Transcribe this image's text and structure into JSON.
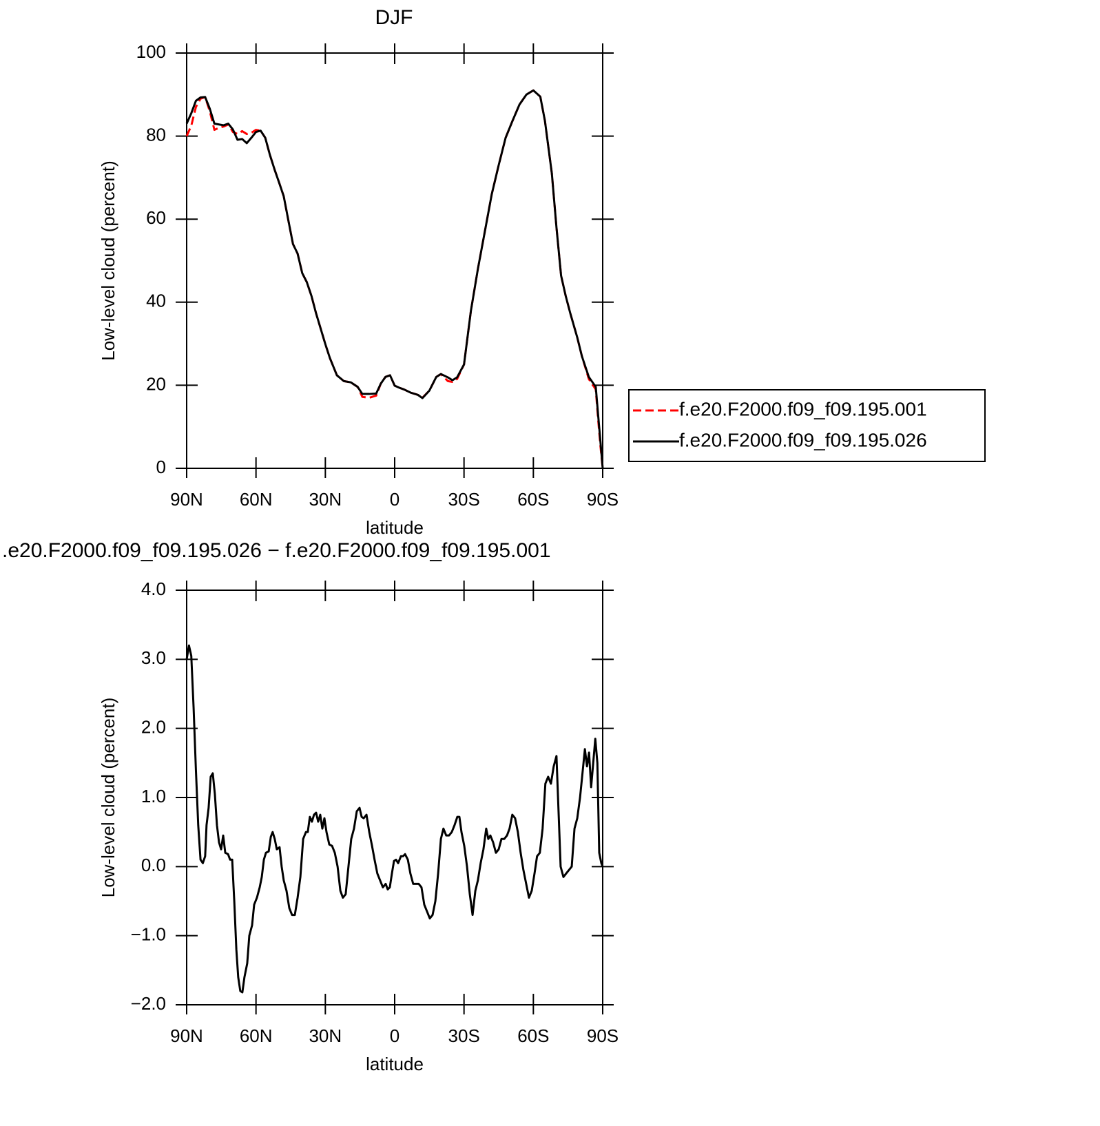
{
  "chart_data": [
    {
      "type": "line",
      "title": "DJF",
      "x_label": "latitude",
      "y_label": "Low-level cloud (percent)",
      "x": [
        90,
        88,
        86,
        84,
        82,
        80,
        78,
        76,
        74,
        72,
        70,
        68,
        66,
        64,
        62,
        60,
        58,
        56,
        54,
        52,
        50,
        48,
        46,
        44,
        42,
        40,
        38,
        36,
        34,
        30,
        28,
        25,
        22,
        19,
        16,
        14,
        11,
        8,
        6,
        4,
        2,
        0,
        -2,
        -4,
        -7,
        -10,
        -12,
        -15,
        -18,
        -20,
        -23,
        -25,
        -27,
        -30,
        -33,
        -36,
        -39,
        -42,
        -45,
        -48,
        -51,
        -54,
        -57,
        -60,
        -63,
        -65,
        -68,
        -70,
        -72,
        -74,
        -76,
        -79,
        -81,
        -84,
        -87,
        -88,
        -89,
        -90
      ],
      "series": [
        {
          "name": "f.e20.F2000.f09_f09.195.001",
          "color": "#ff0000",
          "dashed": true,
          "values": [
            80,
            82.5,
            87,
            89,
            89.4,
            86,
            81.5,
            82,
            82.3,
            82.8,
            81,
            80.5,
            81.2,
            80.5,
            80.8,
            81.5,
            81.3,
            79.6,
            75.5,
            72,
            68.8,
            65.5,
            59.7,
            54,
            51.7,
            47,
            44.8,
            41.5,
            37.3,
            29.9,
            26.5,
            22.4,
            21,
            20.7,
            19.6,
            17.2,
            17,
            17.5,
            20.4,
            22,
            22.4,
            19.9,
            19.4,
            19,
            18.2,
            17.7,
            17,
            18.7,
            22,
            22.7,
            21,
            20.8,
            21.5,
            25,
            38,
            48,
            57,
            66,
            73,
            79.6,
            83.7,
            87.6,
            90,
            91,
            89.5,
            83.7,
            71,
            58,
            46.4,
            41.5,
            37.3,
            31.5,
            27,
            21.5,
            19,
            12,
            5.5,
            0
          ]
        },
        {
          "name": "f.e20.F2000.f09_f09.195.026",
          "color": "#000000",
          "dashed": false,
          "values": [
            83,
            85.5,
            88.5,
            89.3,
            89.4,
            86.6,
            83,
            82.8,
            82.6,
            83,
            81.6,
            79.1,
            79.3,
            78.3,
            79.6,
            81,
            81.3,
            79.6,
            75.5,
            72,
            68.8,
            65.5,
            59.7,
            54,
            51.7,
            47,
            44.8,
            41.5,
            37.3,
            29.9,
            26.5,
            22.4,
            21,
            20.7,
            19.6,
            17.9,
            17.9,
            18,
            20.4,
            22,
            22.4,
            19.9,
            19.4,
            19,
            18.2,
            17.7,
            16.9,
            18.7,
            22,
            22.7,
            21.9,
            21.2,
            21.9,
            25,
            38,
            48,
            57,
            66,
            73,
            79.6,
            83.7,
            87.6,
            90,
            91,
            89.5,
            83.7,
            71,
            58,
            46.4,
            41.5,
            37.3,
            31.5,
            27,
            22,
            19.6,
            13,
            6.6,
            0
          ]
        }
      ],
      "xlim": [
        90,
        -90
      ],
      "xticks": [
        {
          "value": 90,
          "label": "90N"
        },
        {
          "value": 60,
          "label": "60N"
        },
        {
          "value": 30,
          "label": "30N"
        },
        0,
        {
          "value": -30,
          "label": "30S"
        },
        {
          "value": -60,
          "label": "60S"
        },
        {
          "value": -90,
          "label": "90S"
        }
      ],
      "ylim": [
        0,
        100
      ],
      "yticks": [
        0,
        20,
        40,
        60,
        80,
        100
      ],
      "legend": "right",
      "grid": false
    },
    {
      "type": "line",
      "title": ".e20.F2000.f09_f09.195.026 − f.e20.F2000.f09_f09.195.001",
      "x_label": "latitude",
      "y_label": "Low-level cloud (percent)",
      "x": [
        90,
        89,
        88,
        87,
        86,
        85,
        84,
        83,
        82,
        81.4,
        80.5,
        79.6,
        78.7,
        77.8,
        76.9,
        76,
        75.1,
        74.2,
        73.3,
        72.1,
        71.2,
        70.3,
        69.4,
        68.5,
        67.7,
        66.8,
        65.9,
        65,
        63.8,
        62.9,
        61.7,
        60.8,
        59.6,
        58.4,
        57.5,
        56.6,
        55.7,
        54.5,
        53.6,
        52.8,
        51.9,
        51,
        49.8,
        48.9,
        48,
        46.8,
        45.6,
        44.4,
        43.2,
        42,
        40.8,
        39.6,
        38.4,
        37.6,
        36.7,
        35.8,
        34.9,
        34,
        33.1,
        32.2,
        31.3,
        30.4,
        29.5,
        28.3,
        27.1,
        25.9,
        24.7,
        23.5,
        22.4,
        21.2,
        20,
        18.8,
        17.6,
        16.4,
        15.2,
        14.3,
        13.4,
        12.2,
        11,
        9.8,
        8.7,
        7.5,
        6.3,
        5.1,
        3.9,
        3,
        2.1,
        1.2,
        0.3,
        -0.6,
        -1.5,
        -2.7,
        -3.6,
        -4.5,
        -5.7,
        -6.8,
        -8,
        -9.2,
        -10.4,
        -11.6,
        -12.8,
        -14,
        -15.2,
        -16.4,
        -17.6,
        -18.8,
        -20,
        -21.1,
        -22.3,
        -23.5,
        -24.7,
        -25.9,
        -27.1,
        -28,
        -28.9,
        -30.1,
        -31.3,
        -32.5,
        -33.7,
        -34.9,
        -36,
        -37.2,
        -38.4,
        -39.6,
        -40.5,
        -41.4,
        -42.6,
        -43.8,
        -45,
        -46.2,
        -47.4,
        -48.6,
        -49.7,
        -50.9,
        -52.1,
        -53.3,
        -54.5,
        -55.7,
        -56.9,
        -58.1,
        -59.3,
        -60.5,
        -61.6,
        -62.8,
        -64,
        -65.2,
        -66.4,
        -67.6,
        -68.8,
        -70,
        -70.9,
        -71.8,
        -73,
        -74.2,
        -75.4,
        -76.6,
        -77.8,
        -79,
        -80.2,
        -81.4,
        -82.3,
        -83.2,
        -84.1,
        -85,
        -85.9,
        -86.8,
        -87.7,
        -88.5,
        -89.4,
        -90
      ],
      "values": [
        3.0,
        3.2,
        3.05,
        2.3,
        1.4,
        0.6,
        0.1,
        0.05,
        0.15,
        0.6,
        0.85,
        1.3,
        1.35,
        1.05,
        0.6,
        0.35,
        0.25,
        0.45,
        0.2,
        0.18,
        0.1,
        0.1,
        -0.5,
        -1.2,
        -1.6,
        -1.8,
        -1.82,
        -1.6,
        -1.4,
        -1.0,
        -0.85,
        -0.55,
        -0.45,
        -0.3,
        -0.15,
        0.1,
        0.2,
        0.22,
        0.43,
        0.5,
        0.4,
        0.25,
        0.28,
        0.0,
        -0.2,
        -0.35,
        -0.6,
        -0.7,
        -0.7,
        -0.45,
        -0.15,
        0.4,
        0.5,
        0.5,
        0.72,
        0.65,
        0.75,
        0.78,
        0.65,
        0.75,
        0.55,
        0.7,
        0.5,
        0.32,
        0.3,
        0.2,
        0.0,
        -0.35,
        -0.45,
        -0.4,
        0.0,
        0.4,
        0.55,
        0.8,
        0.85,
        0.72,
        0.7,
        0.75,
        0.5,
        0.3,
        0.1,
        -0.1,
        -0.2,
        -0.3,
        -0.25,
        -0.33,
        -0.3,
        -0.1,
        0.08,
        0.1,
        0.05,
        0.15,
        0.15,
        0.18,
        0.1,
        -0.1,
        -0.25,
        -0.25,
        -0.25,
        -0.3,
        -0.55,
        -0.65,
        -0.75,
        -0.7,
        -0.5,
        -0.1,
        0.4,
        0.55,
        0.45,
        0.45,
        0.5,
        0.6,
        0.72,
        0.72,
        0.5,
        0.3,
        0.0,
        -0.4,
        -0.7,
        -0.35,
        -0.2,
        0.05,
        0.25,
        0.55,
        0.4,
        0.45,
        0.35,
        0.2,
        0.25,
        0.4,
        0.4,
        0.45,
        0.55,
        0.75,
        0.7,
        0.5,
        0.2,
        -0.05,
        -0.25,
        -0.45,
        -0.35,
        -0.1,
        0.15,
        0.2,
        0.55,
        1.2,
        1.3,
        1.2,
        1.45,
        1.6,
        0.8,
        0.0,
        -0.15,
        -0.1,
        -0.05,
        0.0,
        0.55,
        0.7,
        1.0,
        1.4,
        1.7,
        1.45,
        1.65,
        1.15,
        1.5,
        1.85,
        1.5,
        0.2,
        0.05,
        0.0
      ],
      "color": "#000000",
      "xlim": [
        90,
        -90
      ],
      "xticks": [
        {
          "value": 90,
          "label": "90N"
        },
        {
          "value": 60,
          "label": "60N"
        },
        {
          "value": 30,
          "label": "30N"
        },
        0,
        {
          "value": -30,
          "label": "30S"
        },
        {
          "value": -60,
          "label": "60S"
        },
        {
          "value": -90,
          "label": "90S"
        }
      ],
      "ylim": [
        -2,
        4
      ],
      "yticks": [
        {
          "value": -2,
          "label": "−2.0"
        },
        {
          "value": -1,
          "label": "−1.0"
        },
        {
          "value": 0,
          "label": "0.0"
        },
        {
          "value": 1,
          "label": "1.0"
        },
        {
          "value": 2,
          "label": "2.0"
        },
        {
          "value": 3,
          "label": "3.0"
        },
        {
          "value": 4,
          "label": "4.0"
        }
      ],
      "grid": false
    }
  ]
}
